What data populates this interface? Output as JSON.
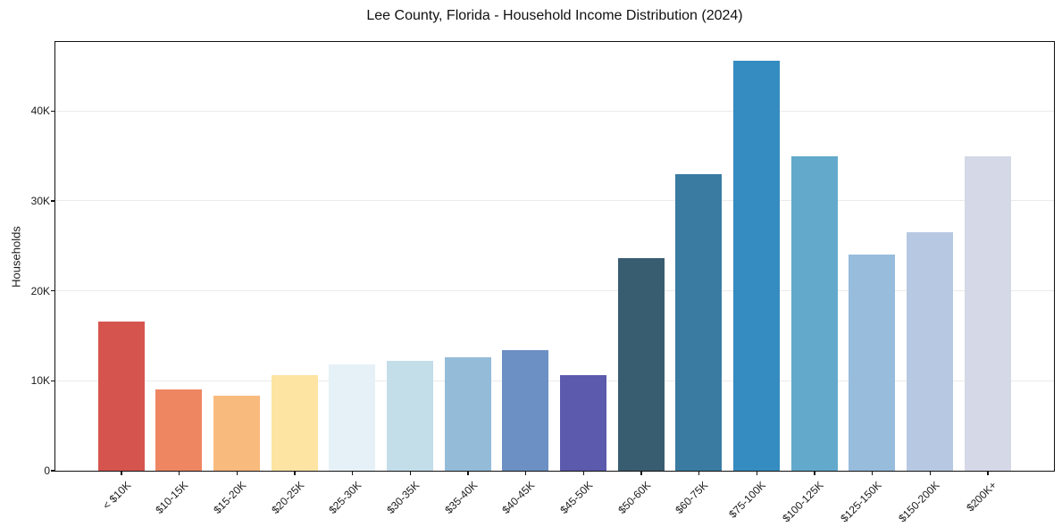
{
  "title": "Lee County, Florida - Household Income Distribution (2024)",
  "chart_data": {
    "type": "bar",
    "title": "Lee County, Florida - Household Income Distribution (2024)",
    "xlabel": "",
    "ylabel": "Households",
    "categories": [
      "< $10K",
      "$10-15K",
      "$15-20K",
      "$20-25K",
      "$25-30K",
      "$30-35K",
      "$35-40K",
      "$40-45K",
      "$45-50K",
      "$50-60K",
      "$60-75K",
      "$75-100K",
      "$100-125K",
      "$125-150K",
      "$150-200K",
      "$200K+"
    ],
    "values": [
      16600,
      9000,
      8300,
      10600,
      11800,
      12200,
      12600,
      13400,
      10600,
      23600,
      33000,
      45600,
      35000,
      24000,
      26500,
      35000
    ],
    "bar_colors": [
      "#d6544e",
      "#ef8662",
      "#f9ba7e",
      "#fde4a2",
      "#e5f1f6",
      "#c3dde9",
      "#94bcd9",
      "#6c90c3",
      "#5b5aac",
      "#395d70",
      "#3a7ba2",
      "#358cc0",
      "#63a9cc",
      "#97bcdc",
      "#b7c8e2",
      "#d5d8e6"
    ],
    "ylim": [
      0,
      47700
    ],
    "yticks": {
      "values": [
        0,
        10000,
        20000,
        30000,
        40000
      ],
      "labels": [
        "0",
        "10K",
        "20K",
        "30K",
        "40K"
      ]
    },
    "grid": "horizontal",
    "legend_position": "none",
    "colors": {
      "background": "#ffffff",
      "axis": "#111111",
      "gridline": "#ebebeb",
      "tick_label": "#1a1a1a"
    }
  }
}
